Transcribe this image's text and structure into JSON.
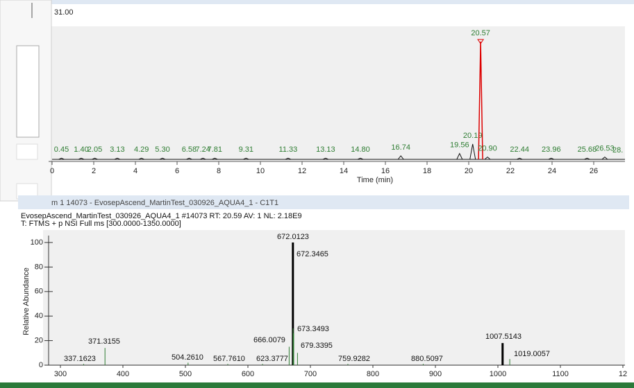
{
  "top_panel": {
    "range_label": "31.00"
  },
  "chromatogram": {
    "x_label": "Time (min)",
    "xlim": [
      0,
      27.5
    ],
    "xticks": [
      0,
      2,
      4,
      6,
      8,
      10,
      12,
      14,
      16,
      18,
      20,
      22,
      24,
      26
    ],
    "ylim": [
      0,
      100
    ],
    "peaks": {
      "rt": [
        0.45,
        1.4,
        2.05,
        3.13,
        4.29,
        5.3,
        6.58,
        7.24,
        7.81,
        9.31,
        11.33,
        13.13,
        14.8,
        16.74,
        19.56,
        20.19,
        20.57,
        20.9,
        22.44,
        23.96,
        25.68,
        26.53
      ],
      "labels": [
        "0.45",
        "1.40",
        "2.05",
        "3.13",
        "4.29",
        "5.30",
        "6.58",
        "7.24",
        "7.81",
        "9.31",
        "11.33",
        "13.13",
        "14.80",
        "16.74",
        "19.56",
        "20.19",
        "20.57",
        "20.90",
        "22.44",
        "23.96",
        "25.68",
        "26.53"
      ],
      "heights": [
        1,
        1,
        1,
        1,
        1,
        1,
        1,
        1,
        1,
        1,
        1,
        1,
        1,
        3,
        5,
        13,
        100,
        2,
        1,
        1,
        1,
        2
      ]
    },
    "truncated_label": "28."
  },
  "spectrum": {
    "window_title": "m  1  14073 - EvosepAscend_MartinTest_030926_AQUA4_1 - C1T1",
    "header_line1": "EvosepAscend_MartinTest_030926_AQUA4_1 #14073 RT: 20.59 AV: 1 NL: 2.18E9",
    "header_line2": "T: FTMS + p NSI Full ms [300.0000-1350.0000]",
    "y_label": "Relative Abundance",
    "xlim": [
      270,
      1205
    ],
    "xticks": [
      300,
      400,
      500,
      600,
      700,
      800,
      900,
      1000,
      1100,
      {
        "value": 1200,
        "label": "12"
      }
    ],
    "ylim": [
      0,
      100
    ],
    "yticks": [
      0,
      20,
      40,
      60,
      80,
      100
    ],
    "peaks": {
      "mz": [
        337.1623,
        371.3155,
        504.261,
        567.761,
        623.3777,
        666.0079,
        672.0123,
        672.3465,
        673.3493,
        679.3395,
        759.9282,
        880.5097,
        1007.5143,
        1019.0057
      ],
      "labels": [
        "337.1623",
        "371.3155",
        "504.2610",
        "567.7610",
        "623.3777",
        "666.0079",
        "672.0123",
        "672.3465",
        "673.3493",
        "679.3395",
        "759.9282",
        "880.5097",
        "1007.5143",
        "1019.0057"
      ],
      "abundance": [
        1,
        14,
        2,
        1,
        1,
        15,
        100,
        30,
        26,
        10,
        1,
        1,
        18,
        5
      ]
    }
  }
}
